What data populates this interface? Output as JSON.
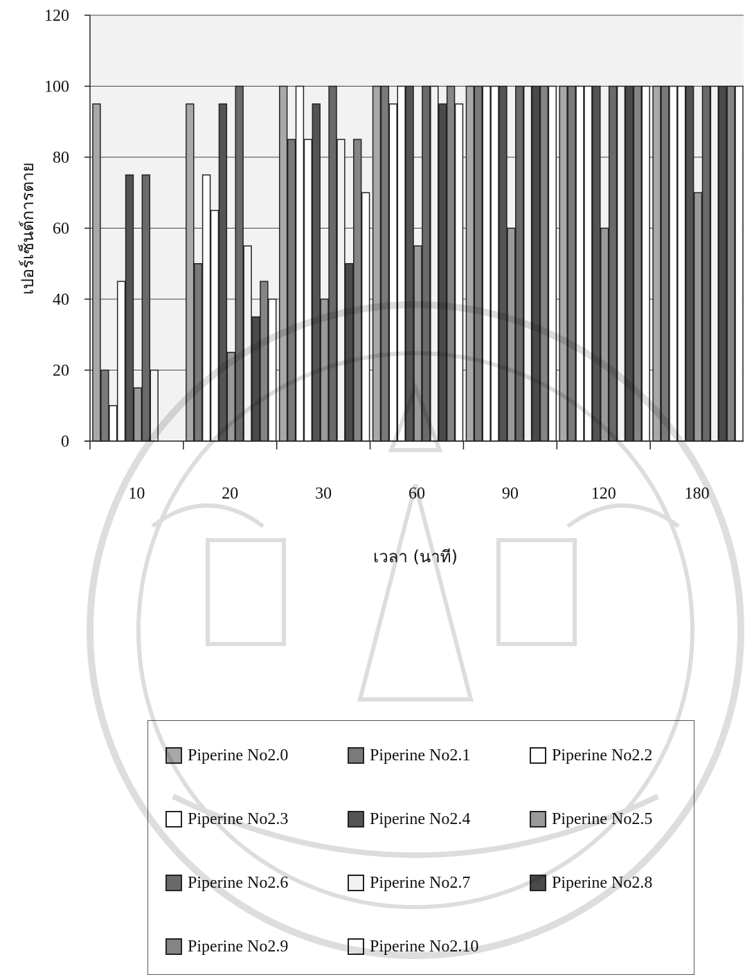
{
  "chart_data": {
    "type": "bar",
    "title": "",
    "xlabel": "เวลา (นาที)",
    "ylabel": "เปอร์เซ็นต์การตาย",
    "ylim": [
      0,
      120
    ],
    "yticks": [
      0,
      20,
      40,
      60,
      80,
      100,
      120
    ],
    "grid": true,
    "legend_position": "bottom",
    "categories": [
      "10",
      "20",
      "30",
      "60",
      "90",
      "120",
      "180"
    ],
    "series": [
      {
        "name": "Piperine No2.0",
        "color": "#a8a8a8",
        "values": [
          95,
          95,
          100,
          100,
          100,
          100,
          100
        ]
      },
      {
        "name": "Piperine No2.1",
        "color": "#7a7a7a",
        "values": [
          20,
          50,
          85,
          100,
          100,
          100,
          100
        ]
      },
      {
        "name": "Piperine No2.2",
        "color": "#ffffff",
        "values": [
          10,
          75,
          100,
          95,
          100,
          100,
          100
        ]
      },
      {
        "name": "Piperine No2.3",
        "color": "#ffffff",
        "values": [
          45,
          65,
          85,
          100,
          100,
          100,
          100
        ]
      },
      {
        "name": "Piperine No2.4",
        "color": "#545454",
        "values": [
          75,
          95,
          95,
          100,
          100,
          100,
          100
        ]
      },
      {
        "name": "Piperine No2.5",
        "color": "#9a9a9a",
        "values": [
          15,
          25,
          40,
          55,
          60,
          60,
          70
        ]
      },
      {
        "name": "Piperine No2.6",
        "color": "#6a6a6a",
        "values": [
          75,
          100,
          100,
          100,
          100,
          100,
          100
        ]
      },
      {
        "name": "Piperine No2.7",
        "color": "#f2f2f2",
        "values": [
          20,
          55,
          85,
          100,
          100,
          100,
          100
        ]
      },
      {
        "name": "Piperine No2.8",
        "color": "#4a4a4a",
        "values": [
          0,
          35,
          50,
          95,
          100,
          100,
          100
        ]
      },
      {
        "name": "Piperine No2.9",
        "color": "#858585",
        "values": [
          0,
          45,
          85,
          100,
          100,
          100,
          100
        ]
      },
      {
        "name": "Piperine No2.10",
        "color": "#ffffff",
        "values": [
          0,
          40,
          70,
          95,
          100,
          100,
          100
        ]
      }
    ]
  }
}
